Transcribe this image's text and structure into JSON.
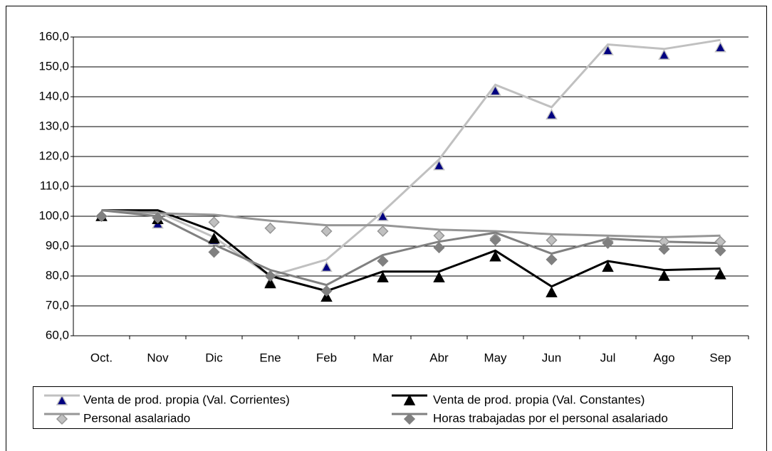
{
  "chart_data": {
    "type": "line",
    "categories": [
      "Oct.",
      "Nov",
      "Dic",
      "Ene",
      "Feb",
      "Mar",
      "Abr",
      "May",
      "Jun",
      "Jul",
      "Ago",
      "Sep"
    ],
    "ylim": [
      60,
      160
    ],
    "yticks": [
      {
        "value": 60,
        "label": "60,0"
      },
      {
        "value": 70,
        "label": "70,0"
      },
      {
        "value": 80,
        "label": "80,0"
      },
      {
        "value": 90,
        "label": "90,0"
      },
      {
        "value": 100,
        "label": "100,0"
      },
      {
        "value": 110,
        "label": "110,0"
      },
      {
        "value": 120,
        "label": "120,0"
      },
      {
        "value": 130,
        "label": "130,0"
      },
      {
        "value": 140,
        "label": "140,0"
      },
      {
        "value": 150,
        "label": "150,0"
      },
      {
        "value": 160,
        "label": "160,0"
      }
    ],
    "grid": true,
    "series": [
      {
        "name": "Venta de prod. propia (Val. Corrientes)",
        "color": "#c0c0c0",
        "marker": "triangle",
        "marker_fill": "#000080",
        "marker_stroke": "#c0c0c0",
        "values": [
          100,
          97.5,
          92,
          78,
          83,
          100,
          117,
          142,
          134,
          155.5,
          154,
          156.5
        ],
        "line_values": [
          102,
          101.5,
          93,
          80,
          85.5,
          101.5,
          119,
          144,
          136.5,
          157.5,
          156,
          159
        ]
      },
      {
        "name": "Venta de prod. propia (Val. Constantes)",
        "color": "#000000",
        "marker": "triangle",
        "marker_fill": "#000000",
        "marker_stroke": "#000000",
        "values": [
          100,
          99,
          92.5,
          77.5,
          73,
          79.5,
          79.5,
          86.5,
          74.5,
          83,
          80,
          80.5
        ],
        "line_values": [
          102,
          102,
          95,
          80,
          75,
          81.5,
          81.5,
          88.5,
          76.5,
          85,
          82,
          82.5
        ]
      },
      {
        "name": "Personal asalariado",
        "color": "#969696",
        "marker": "diamond",
        "marker_fill": "#c0c0c0",
        "marker_stroke": "#969696",
        "values": [
          100,
          99.5,
          98,
          96,
          95,
          95,
          93.5,
          92.5,
          92,
          91.5,
          91.5,
          91.5
        ],
        "line_values": [
          102,
          101,
          100.5,
          98.5,
          97,
          97,
          95.5,
          95,
          94,
          93.5,
          93,
          93.5
        ]
      },
      {
        "name": "Horas trabajadas por el personal asalariado",
        "color": "#808080",
        "marker": "diamond",
        "marker_fill": "#808080",
        "marker_stroke": "#808080",
        "values": [
          100,
          99.5,
          88,
          80,
          75,
          85,
          89.5,
          92,
          85.5,
          91,
          89,
          88.5
        ],
        "line_values": [
          102,
          100,
          90.5,
          82,
          77,
          87,
          91.5,
          94.5,
          87.5,
          92.5,
          91.5,
          91
        ]
      }
    ]
  }
}
